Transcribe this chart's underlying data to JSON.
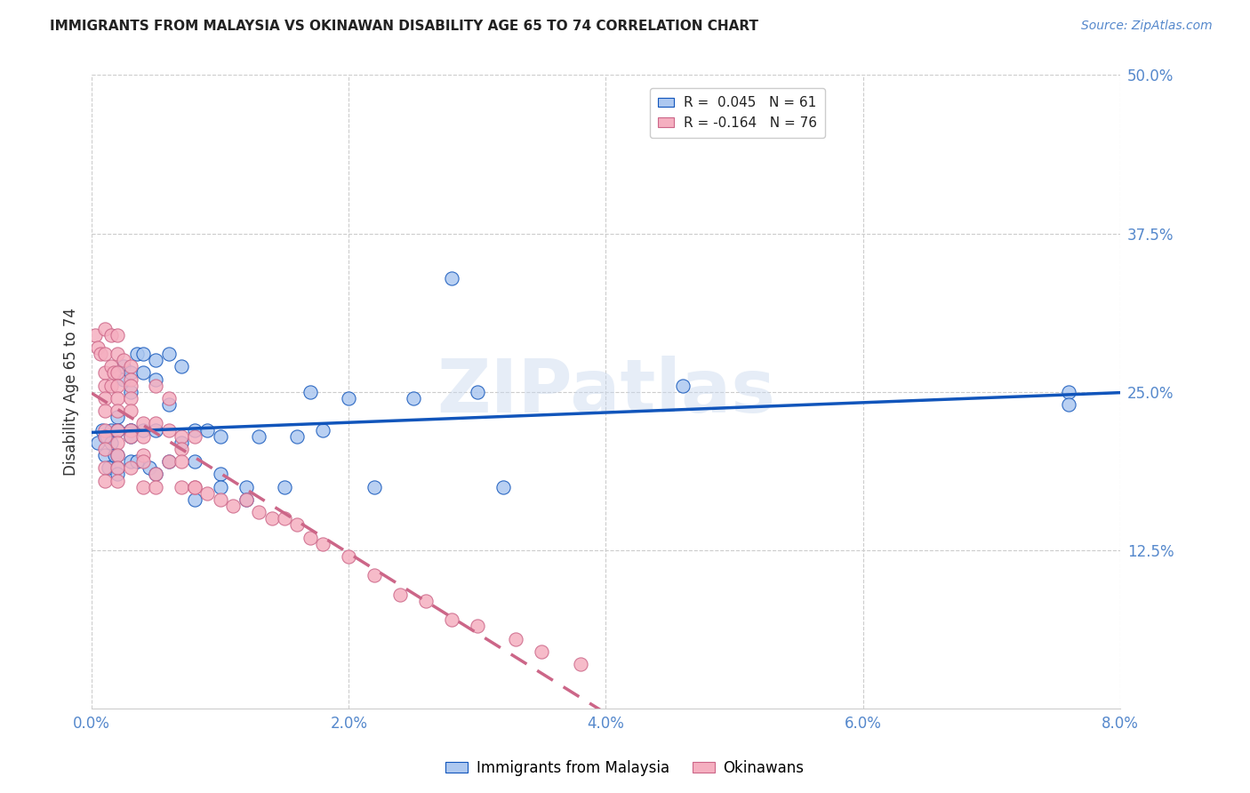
{
  "title": "IMMIGRANTS FROM MALAYSIA VS OKINAWAN DISABILITY AGE 65 TO 74 CORRELATION CHART",
  "source": "Source: ZipAtlas.com",
  "ylabel_label": "Disability Age 65 to 74",
  "xlim": [
    0.0,
    0.08
  ],
  "ylim": [
    0.0,
    0.5
  ],
  "legend_r1": "R =  0.045   N = 61",
  "legend_r2": "R = -0.164   N = 76",
  "series1_color": "#adc8f0",
  "series2_color": "#f5afc0",
  "trendline1_color": "#1155bb",
  "trendline2_color": "#cc6688",
  "background_color": "#ffffff",
  "grid_color": "#cccccc",
  "watermark": "ZIPatlas",
  "tick_color": "#5588cc",
  "malaysia_x": [
    0.0005,
    0.0008,
    0.001,
    0.001,
    0.0012,
    0.0013,
    0.0015,
    0.0015,
    0.0018,
    0.002,
    0.002,
    0.002,
    0.002,
    0.002,
    0.002,
    0.0025,
    0.0025,
    0.003,
    0.003,
    0.003,
    0.003,
    0.003,
    0.003,
    0.0035,
    0.0035,
    0.004,
    0.004,
    0.004,
    0.0045,
    0.005,
    0.005,
    0.005,
    0.005,
    0.006,
    0.006,
    0.006,
    0.007,
    0.007,
    0.008,
    0.008,
    0.008,
    0.009,
    0.01,
    0.01,
    0.01,
    0.012,
    0.012,
    0.013,
    0.015,
    0.016,
    0.017,
    0.018,
    0.02,
    0.022,
    0.025,
    0.028,
    0.03,
    0.032,
    0.046,
    0.076,
    0.076
  ],
  "malaysia_y": [
    0.21,
    0.22,
    0.2,
    0.215,
    0.215,
    0.19,
    0.22,
    0.21,
    0.2,
    0.23,
    0.22,
    0.2,
    0.19,
    0.185,
    0.22,
    0.27,
    0.26,
    0.265,
    0.25,
    0.22,
    0.195,
    0.22,
    0.215,
    0.28,
    0.195,
    0.28,
    0.265,
    0.22,
    0.19,
    0.275,
    0.26,
    0.22,
    0.185,
    0.28,
    0.24,
    0.195,
    0.27,
    0.21,
    0.22,
    0.195,
    0.165,
    0.22,
    0.215,
    0.185,
    0.175,
    0.175,
    0.165,
    0.215,
    0.175,
    0.215,
    0.25,
    0.22,
    0.245,
    0.175,
    0.245,
    0.34,
    0.25,
    0.175,
    0.255,
    0.25,
    0.24
  ],
  "okinawa_x": [
    0.0003,
    0.0005,
    0.0007,
    0.001,
    0.001,
    0.001,
    0.001,
    0.001,
    0.001,
    0.001,
    0.001,
    0.001,
    0.001,
    0.001,
    0.0015,
    0.0015,
    0.0015,
    0.0017,
    0.002,
    0.002,
    0.002,
    0.002,
    0.002,
    0.002,
    0.002,
    0.002,
    0.002,
    0.002,
    0.002,
    0.0025,
    0.003,
    0.003,
    0.003,
    0.003,
    0.003,
    0.003,
    0.003,
    0.003,
    0.004,
    0.004,
    0.004,
    0.004,
    0.004,
    0.005,
    0.005,
    0.005,
    0.005,
    0.006,
    0.006,
    0.006,
    0.007,
    0.007,
    0.007,
    0.007,
    0.008,
    0.008,
    0.008,
    0.009,
    0.01,
    0.011,
    0.012,
    0.013,
    0.014,
    0.015,
    0.016,
    0.017,
    0.018,
    0.02,
    0.022,
    0.024,
    0.026,
    0.028,
    0.03,
    0.033,
    0.035,
    0.038
  ],
  "okinawa_y": [
    0.295,
    0.285,
    0.28,
    0.3,
    0.28,
    0.265,
    0.255,
    0.245,
    0.235,
    0.22,
    0.215,
    0.205,
    0.19,
    0.18,
    0.295,
    0.27,
    0.255,
    0.265,
    0.295,
    0.28,
    0.265,
    0.255,
    0.245,
    0.235,
    0.22,
    0.21,
    0.2,
    0.19,
    0.18,
    0.275,
    0.27,
    0.26,
    0.255,
    0.245,
    0.235,
    0.22,
    0.215,
    0.19,
    0.225,
    0.215,
    0.2,
    0.195,
    0.175,
    0.255,
    0.225,
    0.185,
    0.175,
    0.245,
    0.22,
    0.195,
    0.215,
    0.205,
    0.195,
    0.175,
    0.215,
    0.175,
    0.175,
    0.17,
    0.165,
    0.16,
    0.165,
    0.155,
    0.15,
    0.15,
    0.145,
    0.135,
    0.13,
    0.12,
    0.105,
    0.09,
    0.085,
    0.07,
    0.065,
    0.055,
    0.045,
    0.035
  ]
}
